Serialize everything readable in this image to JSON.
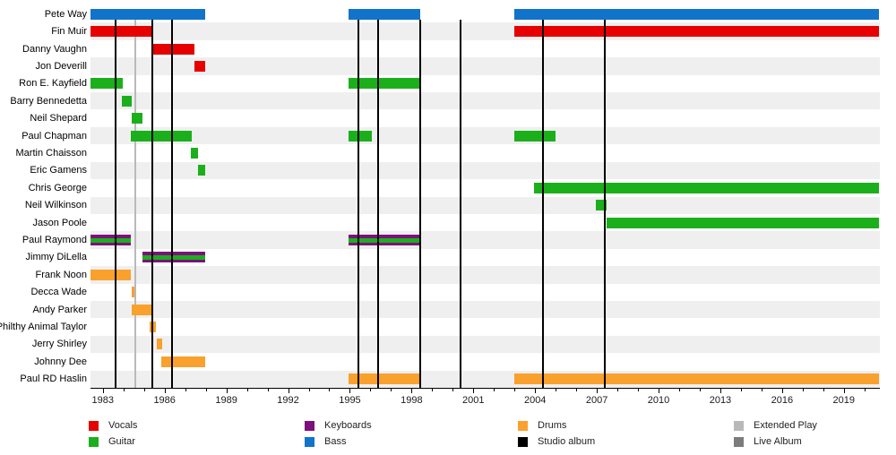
{
  "chart_data": {
    "type": "gantt-timeline",
    "title": "",
    "x_axis": {
      "min": 1982.4,
      "max": 2020.75,
      "label_ticks": [
        1983,
        1986,
        1989,
        1992,
        1995,
        1998,
        2001,
        2004,
        2007,
        2010,
        2013,
        2016,
        2019
      ],
      "minor_tick_interval": 1,
      "minor_tick_start": 1983,
      "minor_tick_end": 2020
    },
    "colors": {
      "vocals": "#e60000",
      "guitar": "#1caf1c",
      "keyboards": "#7d107d",
      "bass": "#1273cb",
      "drums": "#f9a12c",
      "studio_album": "#000000",
      "extended_play": "#b9b9b9",
      "live_album": "#7c7c7c"
    },
    "members": [
      {
        "name": "Pete Way",
        "roles": [
          "bass"
        ],
        "periods": [
          [
            1982.4,
            1987.97
          ],
          [
            1994.93,
            1998.4
          ],
          [
            2002.97,
            2020.72
          ]
        ]
      },
      {
        "name": "Fin Muir",
        "roles": [
          "vocals"
        ],
        "periods": [
          [
            1982.4,
            1985.42
          ],
          [
            2002.97,
            2020.72
          ]
        ]
      },
      {
        "name": "Danny Vaughn",
        "roles": [
          "vocals"
        ],
        "periods": [
          [
            1985.4,
            1987.45
          ]
        ]
      },
      {
        "name": "Jon Deverill",
        "roles": [
          "vocals"
        ],
        "periods": [
          [
            1987.43,
            1987.96
          ]
        ]
      },
      {
        "name": "Ron E. Kayfield",
        "roles": [
          "guitar"
        ],
        "periods": [
          [
            1982.4,
            1983.97
          ],
          [
            1994.93,
            1998.4
          ]
        ]
      },
      {
        "name": "Barry Bennedetta",
        "roles": [
          "guitar"
        ],
        "periods": [
          [
            1983.91,
            1984.4
          ]
        ]
      },
      {
        "name": "Neil Shepard",
        "roles": [
          "guitar"
        ],
        "periods": [
          [
            1984.39,
            1984.94
          ]
        ]
      },
      {
        "name": "Paul Chapman",
        "roles": [
          "guitar"
        ],
        "periods": [
          [
            1984.35,
            1987.3
          ],
          [
            1994.93,
            1996.09
          ],
          [
            2002.97,
            2005.0
          ]
        ]
      },
      {
        "name": "Martin Chaisson",
        "roles": [
          "guitar"
        ],
        "periods": [
          [
            1987.29,
            1987.62
          ]
        ]
      },
      {
        "name": "Eric Gamens",
        "roles": [
          "guitar"
        ],
        "periods": [
          [
            1987.62,
            1987.97
          ]
        ]
      },
      {
        "name": "Chris George",
        "roles": [
          "guitar"
        ],
        "periods": [
          [
            2003.96,
            2020.72
          ]
        ]
      },
      {
        "name": "Neil Wilkinson",
        "roles": [
          "guitar"
        ],
        "periods": [
          [
            2006.97,
            2007.49
          ]
        ]
      },
      {
        "name": "Jason Poole",
        "roles": [
          "guitar"
        ],
        "periods": [
          [
            2007.48,
            2020.72
          ]
        ]
      },
      {
        "name": "Paul Raymond",
        "roles": [
          "keyboards",
          "guitar"
        ],
        "periods": [
          [
            1982.4,
            1984.36
          ],
          [
            1994.93,
            1998.4
          ]
        ]
      },
      {
        "name": "Jimmy DiLella",
        "roles": [
          "keyboards",
          "guitar"
        ],
        "periods": [
          [
            1984.93,
            1987.97
          ]
        ]
      },
      {
        "name": "Frank Noon",
        "roles": [
          "drums"
        ],
        "periods": [
          [
            1982.4,
            1984.36
          ]
        ]
      },
      {
        "name": "Decca Wade",
        "roles": [
          "drums"
        ],
        "periods": [
          [
            1984.39,
            1984.52
          ]
        ]
      },
      {
        "name": "Andy Parker",
        "roles": [
          "drums"
        ],
        "periods": [
          [
            1984.39,
            1985.36
          ]
        ]
      },
      {
        "name": "Philthy Animal Taylor",
        "roles": [
          "drums"
        ],
        "periods": [
          [
            1985.27,
            1985.59
          ]
        ]
      },
      {
        "name": "Jerry Shirley",
        "roles": [
          "drums"
        ],
        "periods": [
          [
            1985.61,
            1985.88
          ]
        ]
      },
      {
        "name": "Johnny Dee",
        "roles": [
          "drums"
        ],
        "periods": [
          [
            1985.84,
            1987.97
          ]
        ]
      },
      {
        "name": "Paul RD Haslin",
        "roles": [
          "drums"
        ],
        "periods": [
          [
            1994.93,
            1998.4
          ],
          [
            2002.97,
            2020.72
          ]
        ]
      }
    ],
    "releases": [
      {
        "year": 1983.64,
        "type": "studio_album"
      },
      {
        "year": 1984.59,
        "type": "extended_play"
      },
      {
        "year": 1985.4,
        "type": "studio_album"
      },
      {
        "year": 1986.38,
        "type": "studio_album"
      },
      {
        "year": 1995.43,
        "type": "studio_album"
      },
      {
        "year": 1996.38,
        "type": "studio_album"
      },
      {
        "year": 1998.4,
        "type": "studio_album"
      },
      {
        "year": 2000.38,
        "type": "studio_album"
      },
      {
        "year": 2004.38,
        "type": "studio_album"
      },
      {
        "year": 2007.38,
        "type": "studio_album"
      }
    ],
    "legend": [
      {
        "items": [
          {
            "label": "Vocals",
            "color_key": "vocals"
          },
          {
            "label": "Guitar",
            "color_key": "guitar"
          }
        ]
      },
      {
        "items": [
          {
            "label": "Keyboards",
            "color_key": "keyboards"
          },
          {
            "label": "Bass",
            "color_key": "bass"
          }
        ]
      },
      {
        "items": [
          {
            "label": "Drums",
            "color_key": "drums"
          },
          {
            "label": "Studio album",
            "color_key": "studio_album"
          }
        ]
      },
      {
        "items": [
          {
            "label": "Extended Play",
            "color_key": "extended_play"
          },
          {
            "label": "Live Album",
            "color_key": "live_album"
          }
        ]
      }
    ]
  }
}
